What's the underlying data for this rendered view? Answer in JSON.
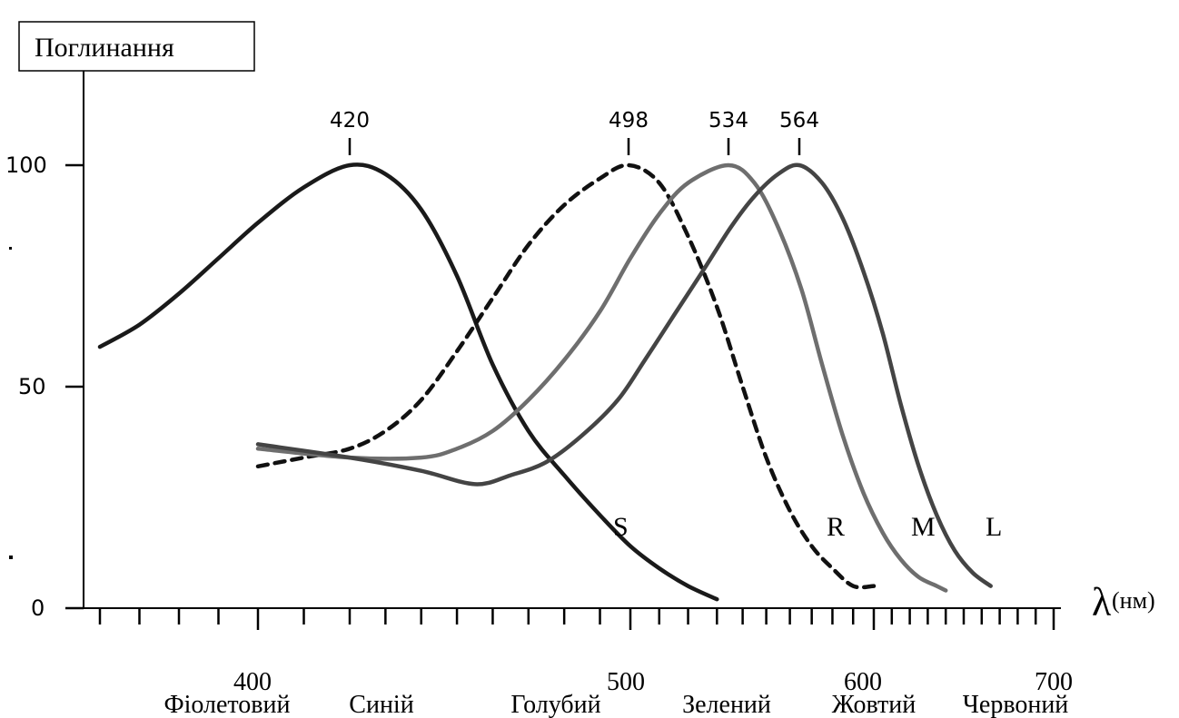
{
  "chart_data": {
    "type": "line",
    "title": "",
    "ylabel": "Поглинання",
    "xlabel_symbol": "λ",
    "xlabel_unit": "(нм)",
    "xlim": [
      360,
      700
    ],
    "ylim": [
      0,
      120
    ],
    "grid": false,
    "x_tick_labels": [
      "400",
      "500",
      "600",
      "700"
    ],
    "y_tick_labels": [
      "0",
      "50",
      "100"
    ],
    "peak_labels": [
      {
        "text": "420",
        "x": 420
      },
      {
        "text": "498",
        "x": 498
      },
      {
        "text": "534",
        "x": 534
      },
      {
        "text": "564",
        "x": 564
      }
    ],
    "color_names": [
      {
        "text": "Фіолетовий",
        "x": 385
      },
      {
        "text": "Синій",
        "x": 425
      },
      {
        "text": "Голубий",
        "x": 485
      },
      {
        "text": "Зелений",
        "x": 540
      },
      {
        "text": "Жовтий",
        "x": 598
      },
      {
        "text": "Червоний",
        "x": 655
      }
    ],
    "series": [
      {
        "name": "S",
        "color": "#1a1a1a",
        "dash": false,
        "points": [
          [
            360,
            59
          ],
          [
            370,
            64
          ],
          [
            380,
            71
          ],
          [
            390,
            79
          ],
          [
            400,
            87
          ],
          [
            410,
            95
          ],
          [
            420,
            100
          ],
          [
            430,
            98
          ],
          [
            440,
            90
          ],
          [
            450,
            75
          ],
          [
            460,
            55
          ],
          [
            470,
            40
          ],
          [
            480,
            30
          ],
          [
            490,
            21
          ],
          [
            500,
            14
          ],
          [
            510,
            9
          ],
          [
            520,
            5
          ],
          [
            530,
            2
          ]
        ]
      },
      {
        "name": "R",
        "color": "#111111",
        "dash": true,
        "points": [
          [
            400,
            32
          ],
          [
            410,
            34
          ],
          [
            420,
            36
          ],
          [
            430,
            40
          ],
          [
            440,
            47
          ],
          [
            450,
            58
          ],
          [
            460,
            70
          ],
          [
            470,
            82
          ],
          [
            480,
            91
          ],
          [
            490,
            97
          ],
          [
            498,
            100
          ],
          [
            510,
            96
          ],
          [
            520,
            84
          ],
          [
            530,
            68
          ],
          [
            540,
            50
          ],
          [
            550,
            34
          ],
          [
            560,
            22
          ],
          [
            570,
            14
          ],
          [
            580,
            9
          ],
          [
            590,
            5
          ],
          [
            600,
            5
          ]
        ]
      },
      {
        "name": "M",
        "color": "#6e6e6e",
        "dash": false,
        "points": [
          [
            400,
            36
          ],
          [
            420,
            34
          ],
          [
            440,
            34
          ],
          [
            450,
            36
          ],
          [
            460,
            40
          ],
          [
            470,
            47
          ],
          [
            480,
            56
          ],
          [
            490,
            67
          ],
          [
            500,
            79
          ],
          [
            510,
            89
          ],
          [
            520,
            96
          ],
          [
            534,
            100
          ],
          [
            545,
            96
          ],
          [
            555,
            86
          ],
          [
            565,
            72
          ],
          [
            575,
            55
          ],
          [
            585,
            39
          ],
          [
            595,
            26
          ],
          [
            605,
            17
          ],
          [
            615,
            11
          ],
          [
            625,
            7
          ],
          [
            635,
            5
          ],
          [
            640,
            4
          ]
        ]
      },
      {
        "name": "L",
        "color": "#444444",
        "dash": false,
        "points": [
          [
            400,
            37
          ],
          [
            420,
            34
          ],
          [
            440,
            31
          ],
          [
            455,
            28
          ],
          [
            465,
            30
          ],
          [
            475,
            33
          ],
          [
            485,
            39
          ],
          [
            495,
            47
          ],
          [
            505,
            56
          ],
          [
            515,
            66
          ],
          [
            525,
            76
          ],
          [
            535,
            86
          ],
          [
            545,
            93
          ],
          [
            555,
            98
          ],
          [
            564,
            100
          ],
          [
            575,
            96
          ],
          [
            585,
            88
          ],
          [
            595,
            76
          ],
          [
            605,
            62
          ],
          [
            615,
            46
          ],
          [
            625,
            32
          ],
          [
            635,
            21
          ],
          [
            645,
            13
          ],
          [
            655,
            8
          ],
          [
            665,
            5
          ]
        ]
      }
    ]
  }
}
